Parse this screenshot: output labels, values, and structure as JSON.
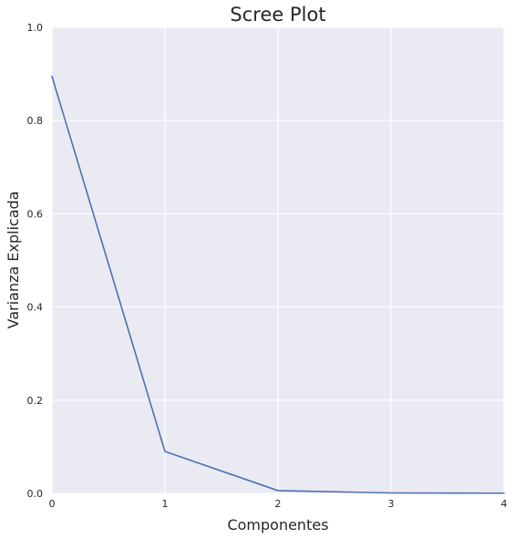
{
  "chart_data": {
    "type": "line",
    "title": "Scree Plot",
    "xlabel": "Componentes",
    "ylabel": "Varianza Explicada",
    "x": [
      0,
      1,
      2,
      3,
      4
    ],
    "series": [
      {
        "values": [
          0.895,
          0.09,
          0.006,
          0.001,
          0.0005
        ]
      }
    ],
    "xlim": [
      0,
      4
    ],
    "ylim": [
      0,
      1
    ],
    "xticks": [
      0,
      1,
      2,
      3,
      4
    ],
    "yticks": [
      0.0,
      0.2,
      0.4,
      0.6,
      0.8,
      1.0
    ],
    "xtick_labels": [
      "0",
      "1",
      "2",
      "3",
      "4"
    ],
    "ytick_labels": [
      "0.0",
      "0.2",
      "0.4",
      "0.6",
      "0.8",
      "1.0"
    ],
    "grid": true,
    "legend": "none",
    "colors": {
      "background": "#eaeaf2",
      "grid": "#ffffff",
      "line": "#4c72b0",
      "text": "#262626"
    }
  }
}
